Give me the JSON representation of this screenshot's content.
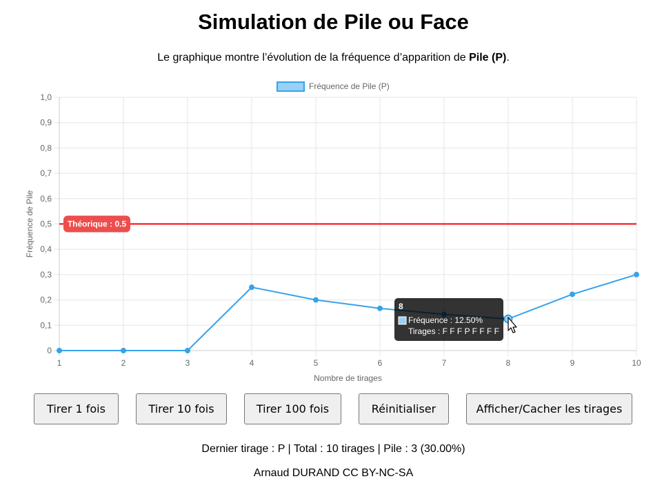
{
  "page": {
    "title": "Simulation de Pile ou Face",
    "subtitle_prefix": "Le graphique montre l’évolution de la fréquence d’apparition de ",
    "subtitle_bold": "Pile (P)",
    "subtitle_suffix": "."
  },
  "buttons": {
    "draw_1": "Tirer 1 fois",
    "draw_10": "Tirer 10 fois",
    "draw_100": "Tirer 100 fois",
    "reset": "Réinitialiser",
    "toggle_draws": "Afficher/Cacher les tirages"
  },
  "status": "Dernier tirage : P | Total : 10 tirages | Pile : 3 (30.00%)",
  "footer": "Arnaud DURAND CC BY-NC-SA",
  "chart_data": {
    "type": "line",
    "x": [
      1,
      2,
      3,
      4,
      5,
      6,
      7,
      8,
      9,
      10
    ],
    "series": [
      {
        "name": "Fréquence de Pile (P)",
        "values": [
          0,
          0,
          0,
          0.25,
          0.2,
          0.1667,
          0.1429,
          0.125,
          0.2222,
          0.3
        ],
        "color": "#36a2eb",
        "fill": "#9ad0f5"
      }
    ],
    "xlabel": "Nombre de tirages",
    "ylabel": "Fréquence de Pile",
    "ylim": [
      0,
      1
    ],
    "x_ticks": [
      "1",
      "2",
      "3",
      "4",
      "5",
      "6",
      "7",
      "8",
      "9",
      "10"
    ],
    "y_ticks": [
      "0",
      "0,1",
      "0,2",
      "0,3",
      "0,4",
      "0,5",
      "0,6",
      "0,7",
      "0,8",
      "0,9",
      "1,0"
    ],
    "grid": true,
    "legend_position": "top",
    "reference_line": {
      "value": 0.5,
      "label": "Théorique : 0.5",
      "color": "#ff0000"
    },
    "tooltip": {
      "x": 8,
      "title": "8",
      "line1": "Fréquence : 12.50%",
      "line2": "Tirages : F F F P F F F F"
    }
  }
}
